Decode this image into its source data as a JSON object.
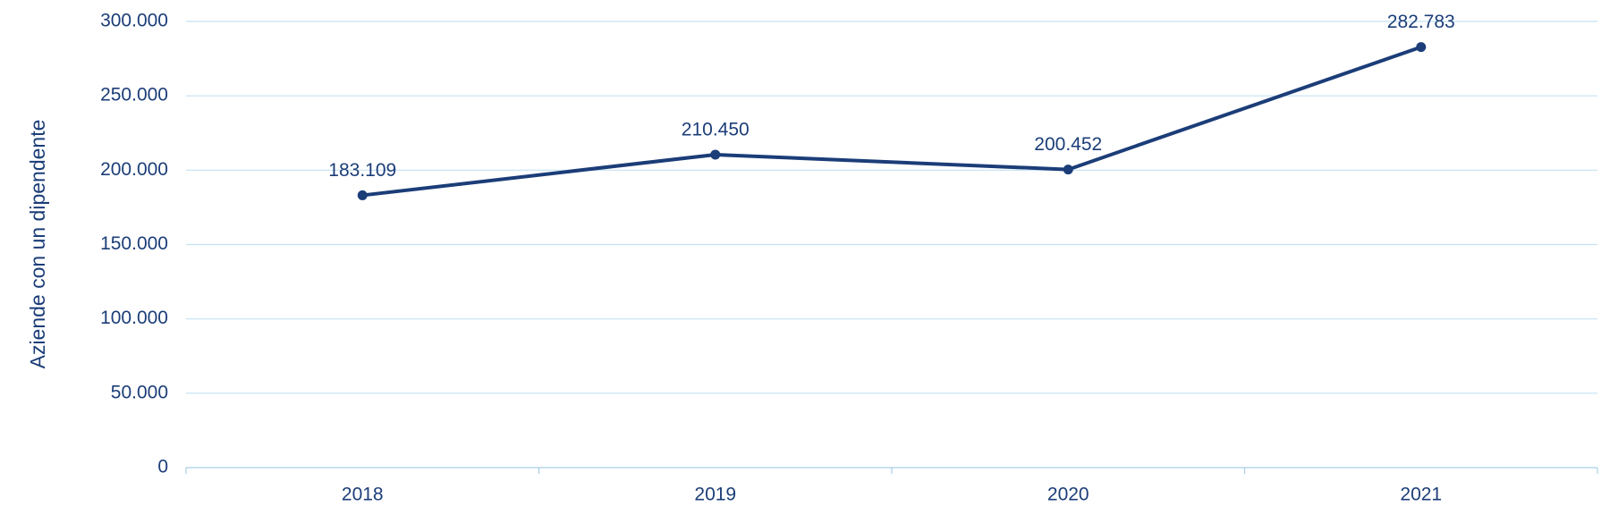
{
  "chart_data": {
    "type": "line",
    "y_label": "Aziende con un dipendente",
    "categories": [
      "2018",
      "2019",
      "2020",
      "2021"
    ],
    "values": [
      183109,
      210450,
      200452,
      282783
    ],
    "value_labels": [
      "183.109",
      "210.450",
      "200.452",
      "282.783"
    ],
    "color": "#1b3d78",
    "ylim": [
      0,
      300000
    ],
    "yticks": [
      0,
      {
        "value": 50000,
        "label": "50.000"
      },
      {
        "value": 100000,
        "label": "100.000"
      },
      {
        "value": 150000,
        "label": "150.000"
      },
      {
        "value": 200000,
        "label": "200.000"
      },
      {
        "value": 250000,
        "label": "250.000"
      },
      {
        "value": 300000,
        "label": "300.000"
      }
    ],
    "grid": true
  }
}
